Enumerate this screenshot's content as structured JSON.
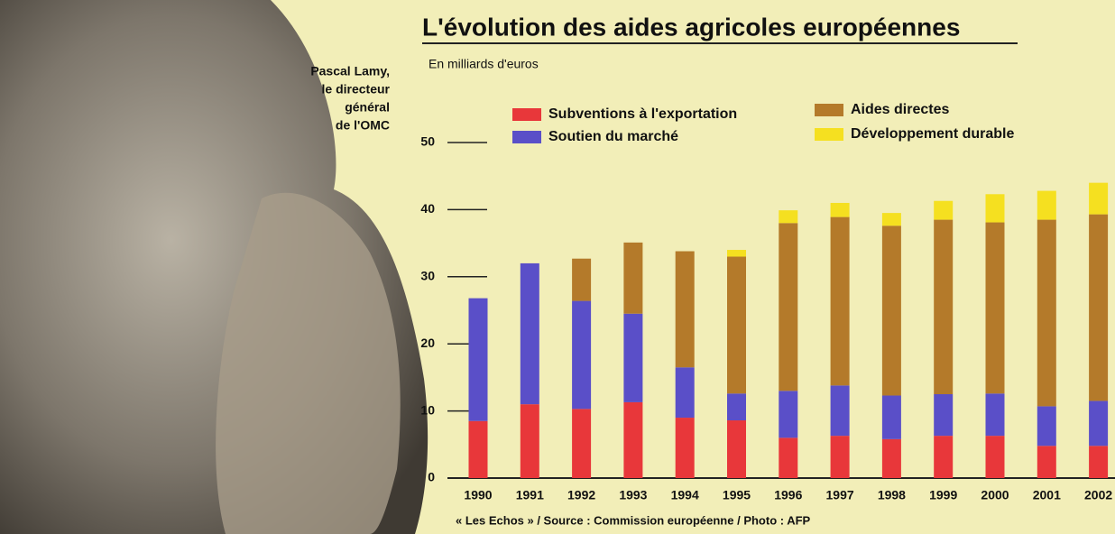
{
  "chart_data": {
    "type": "stacked-bar",
    "title": "L'évolution des aides agricoles européennes",
    "subtitle": "En milliards d'euros",
    "caption": [
      "Pascal Lamy,",
      "le directeur",
      "général",
      "de l'OMC"
    ],
    "source": "« Les Echos » / Source : Commission  européenne / Photo : AFP",
    "categories": [
      "1990",
      "1991",
      "1992",
      "1993",
      "1994",
      "1995",
      "1996",
      "1997",
      "1998",
      "1999",
      "2000",
      "2001",
      "2002"
    ],
    "series": [
      {
        "name": "Subventions à l'exportation",
        "color": "#e8373a",
        "values": [
          8.5,
          11,
          10.3,
          11.3,
          9,
          8.6,
          6,
          6.3,
          5.8,
          6.3,
          6.3,
          4.8,
          4.8
        ]
      },
      {
        "name": "Soutien du marché",
        "color": "#5a4fc8",
        "values": [
          18.3,
          21,
          16.1,
          13.2,
          7.5,
          4,
          7,
          7.5,
          6.5,
          6.2,
          6.3,
          5.9,
          6.7
        ]
      },
      {
        "name": "Aides directes",
        "color": "#b47a2a",
        "values": [
          0,
          0,
          6.3,
          10.6,
          17.3,
          20.4,
          25,
          25.1,
          25.3,
          26,
          25.5,
          27.8,
          27.8
        ]
      },
      {
        "name": "Développement durable",
        "color": "#f5e020",
        "values": [
          0,
          0,
          0,
          0,
          0,
          1,
          1.9,
          2.1,
          1.9,
          2.8,
          4.2,
          4.3,
          4.7
        ]
      }
    ],
    "ylim": [
      0,
      50
    ],
    "yticks": [
      0,
      10,
      20,
      30,
      40,
      50
    ],
    "grid": false
  }
}
